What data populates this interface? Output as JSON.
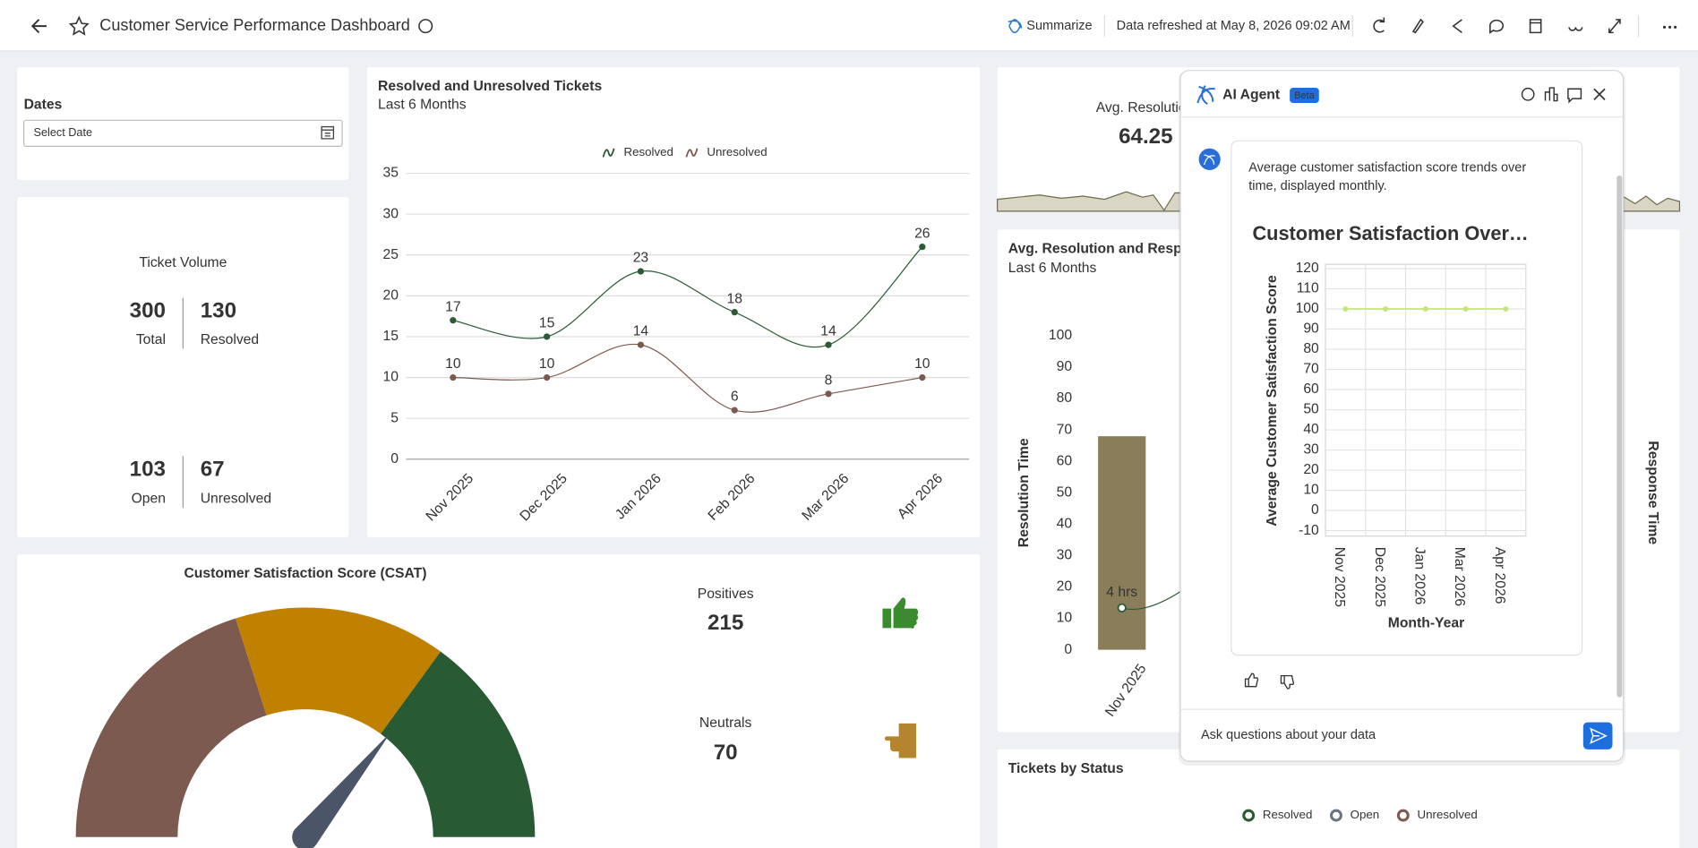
{
  "header": {
    "title": "Customer Service Performance Dashboard",
    "summarize": "Summarize",
    "refreshed": "Data refreshed at May 8, 2026 09:02 AM"
  },
  "dates": {
    "label": "Dates",
    "placeholder": "Select Date"
  },
  "ticket_volume": {
    "title": "Ticket Volume",
    "metrics": [
      {
        "value": 300,
        "label": "Total"
      },
      {
        "value": 130,
        "label": "Resolved"
      },
      {
        "value": 103,
        "label": "Open"
      },
      {
        "value": 67,
        "label": "Unresolved"
      }
    ]
  },
  "tickets_chart": {
    "type": "line",
    "title": "Resolved and Unresolved Tickets",
    "subtitle": "Last 6 Months",
    "categories": [
      "Nov 2025",
      "Dec 2025",
      "Jan 2026",
      "Feb 2026",
      "Mar 2026",
      "Apr 2026"
    ],
    "series": [
      {
        "name": "Resolved",
        "color": "#2b5a35",
        "values": [
          17,
          15,
          23,
          18,
          14,
          26
        ]
      },
      {
        "name": "Unresolved",
        "color": "#7d5a50",
        "values": [
          10,
          10,
          14,
          6,
          8,
          10
        ]
      }
    ],
    "ylim": [
      0,
      35
    ],
    "yticks": [
      0,
      5,
      10,
      15,
      20,
      25,
      30,
      35
    ],
    "grid": true
  },
  "csat": {
    "title": "Customer Satisfaction Score (CSAT)",
    "positives": {
      "label": "Positives",
      "value": 215
    },
    "neutrals": {
      "label": "Neutrals",
      "value": 70
    }
  },
  "avg_resolution_kpi": {
    "label": "Avg. Resolutio",
    "value": 64.25
  },
  "resolution_chart": {
    "type": "bar",
    "title": "Avg. Resolution and Respo",
    "subtitle": "Last 6 Months",
    "categories": [
      "Nov 2025"
    ],
    "bar_values": [
      68
    ],
    "bar_color": "#8a7d5a",
    "line_values": [
      4
    ],
    "line_value_labels": [
      "4 hrs"
    ],
    "y_label": "Resolution Time",
    "y2_label": "Response Time",
    "ylim": [
      0,
      100
    ],
    "yticks": [
      0,
      10,
      20,
      30,
      40,
      50,
      60,
      70,
      80,
      90,
      100
    ],
    "y2lim": [
      0,
      30
    ]
  },
  "tickets_by_status": {
    "title": "Tickets by Status",
    "legend": [
      {
        "name": "Resolved",
        "color": "#2b5a35"
      },
      {
        "name": "Open",
        "color": "#6b7280"
      },
      {
        "name": "Unresolved",
        "color": "#7d5a50"
      }
    ]
  },
  "ai_agent": {
    "title": "AI Agent",
    "badge": "Beta",
    "message": [
      "Average customer satisfaction score trends over",
      "time, displayed monthly."
    ],
    "chart": {
      "type": "line",
      "title": "Customer Satisfaction Over…",
      "y_label": "Average Customer Satisfaction Score",
      "x_label": "Month-Year",
      "categories": [
        "Nov 2025",
        "Dec 2025",
        "Jan 2026",
        "Mar 2026",
        "Apr 2026"
      ],
      "values": [
        100,
        100,
        100,
        100,
        100
      ],
      "color": "#c5e67a",
      "ylim": [
        -10,
        120
      ],
      "yticks": [
        -10,
        0,
        10,
        20,
        30,
        40,
        50,
        60,
        70,
        80,
        90,
        100,
        110,
        120
      ]
    },
    "input_placeholder": "Ask questions about your data"
  }
}
